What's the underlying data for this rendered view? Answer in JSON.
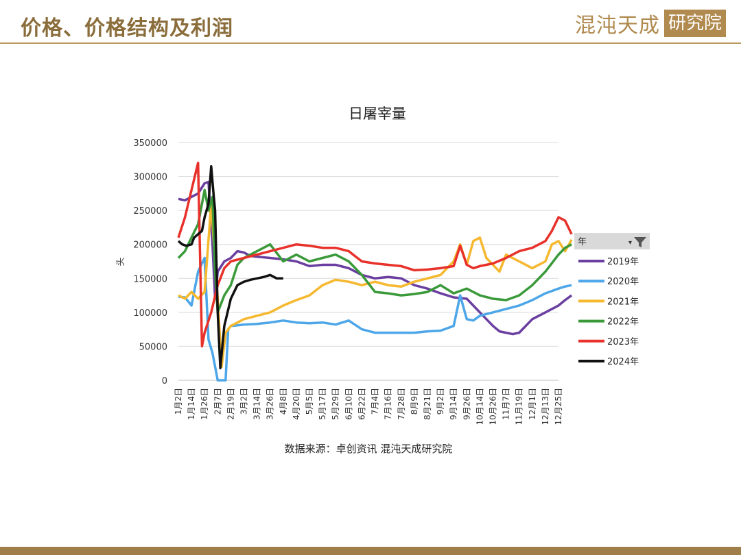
{
  "header": {
    "title": "价格、价格结构及利润",
    "logo_text": "混沌天成",
    "logo_box_text": "研究院"
  },
  "colors": {
    "accent": "#a07e4a",
    "title": "#8a6d3b"
  },
  "source": "数据来源：卓创资讯  混沌天成研究院",
  "chart_data": {
    "type": "line",
    "title": "日屠宰量",
    "ylabel": "头",
    "xlabel": "",
    "ylim": [
      0,
      350000
    ],
    "yticks": [
      0,
      50000,
      100000,
      150000,
      200000,
      250000,
      300000,
      350000
    ],
    "grid": true,
    "legend_title": "年",
    "legend_position": "right",
    "x_ticks": [
      "1月2日",
      "1月14日",
      "1月26日",
      "2月7日",
      "2月19日",
      "3月2日",
      "3月14日",
      "3月26日",
      "4月8日",
      "4月20日",
      "5月5日",
      "5月17日",
      "5月29日",
      "6月10日",
      "6月22日",
      "7月4日",
      "7月16日",
      "7月28日",
      "8月9日",
      "8月21日",
      "9月2日",
      "9月14日",
      "9月26日",
      "10月14日",
      "10月26日",
      "11月7日",
      "11月19日",
      "12月1日",
      "12月13日",
      "12月25日"
    ],
    "series": [
      {
        "name": "2019年",
        "color": "#6a3fa0",
        "values": [
          [
            0,
            267000
          ],
          [
            0.5,
            265000
          ],
          [
            1,
            270000
          ],
          [
            1.5,
            275000
          ],
          [
            2,
            290000
          ],
          [
            2.3,
            292000
          ],
          [
            2.6,
            200000
          ],
          [
            2.8,
            120000
          ],
          [
            3,
            160000
          ],
          [
            3.5,
            175000
          ],
          [
            4,
            180000
          ],
          [
            4.5,
            190000
          ],
          [
            5,
            188000
          ],
          [
            5.5,
            183000
          ],
          [
            6,
            182000
          ],
          [
            7,
            180000
          ],
          [
            8,
            178000
          ],
          [
            9,
            175000
          ],
          [
            10,
            168000
          ],
          [
            11,
            170000
          ],
          [
            12,
            170000
          ],
          [
            13,
            165000
          ],
          [
            14,
            155000
          ],
          [
            15,
            150000
          ],
          [
            16,
            152000
          ],
          [
            17,
            150000
          ],
          [
            18,
            140000
          ],
          [
            19,
            135000
          ],
          [
            20,
            128000
          ],
          [
            21,
            122000
          ],
          [
            22,
            120000
          ],
          [
            23,
            100000
          ],
          [
            24,
            80000
          ],
          [
            24.5,
            72000
          ],
          [
            25,
            70000
          ],
          [
            25.5,
            68000
          ],
          [
            26,
            70000
          ],
          [
            27,
            90000
          ],
          [
            28,
            100000
          ],
          [
            29,
            110000
          ],
          [
            29.5,
            118000
          ],
          [
            30,
            125000
          ]
        ]
      },
      {
        "name": "2020年",
        "color": "#4da6e8",
        "values": [
          [
            0,
            123000
          ],
          [
            0.5,
            122000
          ],
          [
            1,
            110000
          ],
          [
            1.5,
            160000
          ],
          [
            2,
            180000
          ],
          [
            2.3,
            60000
          ],
          [
            2.6,
            40000
          ],
          [
            3,
            0
          ],
          [
            3.4,
            0
          ],
          [
            3.6,
            0
          ],
          [
            3.8,
            75000
          ],
          [
            4,
            80000
          ],
          [
            5,
            82000
          ],
          [
            6,
            83000
          ],
          [
            7,
            85000
          ],
          [
            8,
            88000
          ],
          [
            9,
            85000
          ],
          [
            10,
            84000
          ],
          [
            11,
            85000
          ],
          [
            12,
            82000
          ],
          [
            13,
            88000
          ],
          [
            14,
            75000
          ],
          [
            15,
            70000
          ],
          [
            16,
            70000
          ],
          [
            17,
            70000
          ],
          [
            18,
            70000
          ],
          [
            19,
            72000
          ],
          [
            20,
            73000
          ],
          [
            21,
            80000
          ],
          [
            21.5,
            125000
          ],
          [
            22,
            90000
          ],
          [
            22.5,
            88000
          ],
          [
            23,
            95000
          ],
          [
            24,
            100000
          ],
          [
            25,
            105000
          ],
          [
            26,
            110000
          ],
          [
            27,
            118000
          ],
          [
            28,
            128000
          ],
          [
            29,
            135000
          ],
          [
            29.5,
            138000
          ],
          [
            30,
            140000
          ]
        ]
      },
      {
        "name": "2021年",
        "color": "#f5b82e",
        "values": [
          [
            0,
            125000
          ],
          [
            0.5,
            120000
          ],
          [
            1,
            130000
          ],
          [
            1.5,
            120000
          ],
          [
            2,
            130000
          ],
          [
            2.5,
            260000
          ],
          [
            3,
            120000
          ],
          [
            3.3,
            20000
          ],
          [
            3.6,
            70000
          ],
          [
            4,
            80000
          ],
          [
            5,
            90000
          ],
          [
            6,
            95000
          ],
          [
            7,
            100000
          ],
          [
            8,
            110000
          ],
          [
            9,
            118000
          ],
          [
            10,
            125000
          ],
          [
            11,
            140000
          ],
          [
            12,
            148000
          ],
          [
            13,
            145000
          ],
          [
            14,
            140000
          ],
          [
            15,
            145000
          ],
          [
            16,
            140000
          ],
          [
            17,
            138000
          ],
          [
            18,
            145000
          ],
          [
            19,
            150000
          ],
          [
            20,
            155000
          ],
          [
            21,
            175000
          ],
          [
            21.5,
            200000
          ],
          [
            22,
            170000
          ],
          [
            22.5,
            205000
          ],
          [
            23,
            210000
          ],
          [
            23.5,
            180000
          ],
          [
            24,
            170000
          ],
          [
            24.5,
            160000
          ],
          [
            25,
            185000
          ],
          [
            26,
            175000
          ],
          [
            27,
            165000
          ],
          [
            28,
            175000
          ],
          [
            28.5,
            200000
          ],
          [
            29,
            205000
          ],
          [
            29.5,
            190000
          ],
          [
            30,
            207000
          ]
        ]
      },
      {
        "name": "2022年",
        "color": "#3a9a3a",
        "values": [
          [
            0,
            180000
          ],
          [
            0.5,
            190000
          ],
          [
            1,
            210000
          ],
          [
            1.5,
            230000
          ],
          [
            2,
            280000
          ],
          [
            2.3,
            250000
          ],
          [
            2.6,
            270000
          ],
          [
            2.8,
            160000
          ],
          [
            3,
            100000
          ],
          [
            3.5,
            125000
          ],
          [
            4,
            140000
          ],
          [
            4.5,
            170000
          ],
          [
            5,
            180000
          ],
          [
            6,
            190000
          ],
          [
            7,
            200000
          ],
          [
            8,
            175000
          ],
          [
            9,
            185000
          ],
          [
            10,
            175000
          ],
          [
            11,
            180000
          ],
          [
            12,
            185000
          ],
          [
            13,
            175000
          ],
          [
            14,
            155000
          ],
          [
            15,
            130000
          ],
          [
            16,
            128000
          ],
          [
            17,
            125000
          ],
          [
            18,
            127000
          ],
          [
            19,
            130000
          ],
          [
            20,
            140000
          ],
          [
            21,
            128000
          ],
          [
            22,
            135000
          ],
          [
            23,
            125000
          ],
          [
            24,
            120000
          ],
          [
            25,
            118000
          ],
          [
            26,
            125000
          ],
          [
            27,
            140000
          ],
          [
            28,
            160000
          ],
          [
            29,
            185000
          ],
          [
            29.5,
            195000
          ],
          [
            30,
            200000
          ]
        ]
      },
      {
        "name": "2023年",
        "color": "#e8312a",
        "values": [
          [
            0,
            210000
          ],
          [
            0.5,
            240000
          ],
          [
            1,
            280000
          ],
          [
            1.5,
            320000
          ],
          [
            1.8,
            50000
          ],
          [
            2,
            70000
          ],
          [
            2.5,
            100000
          ],
          [
            3,
            140000
          ],
          [
            3.5,
            165000
          ],
          [
            4,
            175000
          ],
          [
            5,
            180000
          ],
          [
            6,
            185000
          ],
          [
            7,
            190000
          ],
          [
            8,
            195000
          ],
          [
            9,
            200000
          ],
          [
            10,
            198000
          ],
          [
            11,
            195000
          ],
          [
            12,
            195000
          ],
          [
            13,
            190000
          ],
          [
            14,
            175000
          ],
          [
            15,
            172000
          ],
          [
            16,
            170000
          ],
          [
            17,
            168000
          ],
          [
            18,
            162000
          ],
          [
            19,
            163000
          ],
          [
            20,
            165000
          ],
          [
            21,
            168000
          ],
          [
            21.5,
            198000
          ],
          [
            22,
            170000
          ],
          [
            22.5,
            165000
          ],
          [
            23,
            168000
          ],
          [
            24,
            172000
          ],
          [
            25,
            180000
          ],
          [
            26,
            190000
          ],
          [
            27,
            195000
          ],
          [
            28,
            205000
          ],
          [
            28.5,
            220000
          ],
          [
            29,
            240000
          ],
          [
            29.5,
            235000
          ],
          [
            30,
            215000
          ]
        ]
      },
      {
        "name": "2024年",
        "color": "#111111",
        "values": [
          [
            0,
            205000
          ],
          [
            0.3,
            200000
          ],
          [
            0.6,
            198000
          ],
          [
            1,
            200000
          ],
          [
            1.2,
            210000
          ],
          [
            1.5,
            215000
          ],
          [
            1.8,
            220000
          ],
          [
            2,
            240000
          ],
          [
            2.3,
            260000
          ],
          [
            2.5,
            315000
          ],
          [
            2.7,
            270000
          ],
          [
            2.8,
            250000
          ],
          [
            3,
            100000
          ],
          [
            3.2,
            18000
          ],
          [
            3.5,
            80000
          ],
          [
            4,
            120000
          ],
          [
            4.5,
            140000
          ],
          [
            5,
            145000
          ],
          [
            5.5,
            148000
          ],
          [
            6,
            150000
          ],
          [
            6.5,
            152000
          ],
          [
            7,
            155000
          ],
          [
            7.5,
            150000
          ],
          [
            8,
            150000
          ]
        ]
      }
    ]
  }
}
